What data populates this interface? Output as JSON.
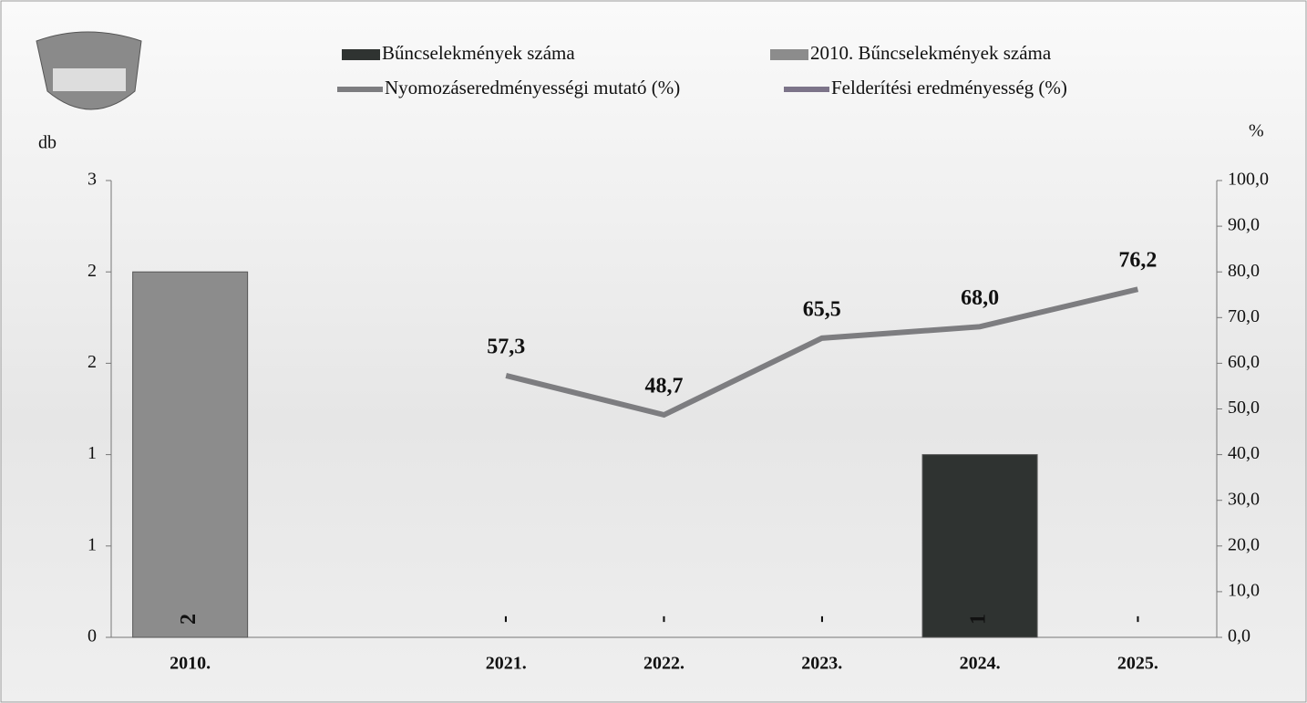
{
  "chart_data": {
    "type": "bar",
    "categories": [
      "2010.",
      null,
      "2021.",
      "2022.",
      "2023.",
      "2024.",
      "2025."
    ],
    "series": [
      {
        "name": "Bűncselekmények száma",
        "color": "#2f3331",
        "values": [
          null,
          null,
          0,
          0,
          0,
          1,
          0
        ],
        "value_labels": [
          null,
          null,
          "-",
          "-",
          "-",
          "1",
          "-"
        ]
      },
      {
        "name": "2010. Bűncselekmények száma",
        "color": "#8c8c8c",
        "values": [
          2,
          null,
          null,
          null,
          null,
          null,
          null
        ]
      },
      {
        "name": "Nyomozáseredményességi mutató (%)",
        "color": "#7d7d80",
        "type": "line",
        "axis": "y2",
        "values": [
          null,
          null,
          57.3,
          48.7,
          65.5,
          68.0,
          76.2
        ],
        "value_labels": [
          null,
          null,
          "57,3",
          "48,7",
          "65,5",
          "68,0",
          "76,2"
        ]
      },
      {
        "name": "Felderítési eredményesség (%)",
        "color": "#7c7489",
        "type": "line",
        "axis": "y2",
        "values": [
          null,
          null,
          null,
          null,
          null,
          null,
          null
        ]
      }
    ],
    "ylabel": "db",
    "y2label": "%",
    "ylim": [
      0,
      2.5
    ],
    "yticks": [
      {
        "value": 0,
        "label": "0"
      },
      {
        "value": 0.5,
        "label": "1"
      },
      {
        "value": 1,
        "label": "1"
      },
      {
        "value": 1.5,
        "label": "2"
      },
      {
        "value": 2,
        "label": "2"
      },
      {
        "value": 2.5,
        "label": "3"
      }
    ],
    "y2lim": [
      0,
      100
    ],
    "y2ticks": [
      {
        "value": 0,
        "label": "0,0"
      },
      {
        "value": 10,
        "label": "10,0"
      },
      {
        "value": 20,
        "label": "20,0"
      },
      {
        "value": 30,
        "label": "30,0"
      },
      {
        "value": 40,
        "label": "40,0"
      },
      {
        "value": 50,
        "label": "50,0"
      },
      {
        "value": 60,
        "label": "60,0"
      },
      {
        "value": 70,
        "label": "70,0"
      },
      {
        "value": 80,
        "label": "80,0"
      },
      {
        "value": 90,
        "label": "90,0"
      },
      {
        "value": 100,
        "label": "100,0"
      }
    ]
  }
}
